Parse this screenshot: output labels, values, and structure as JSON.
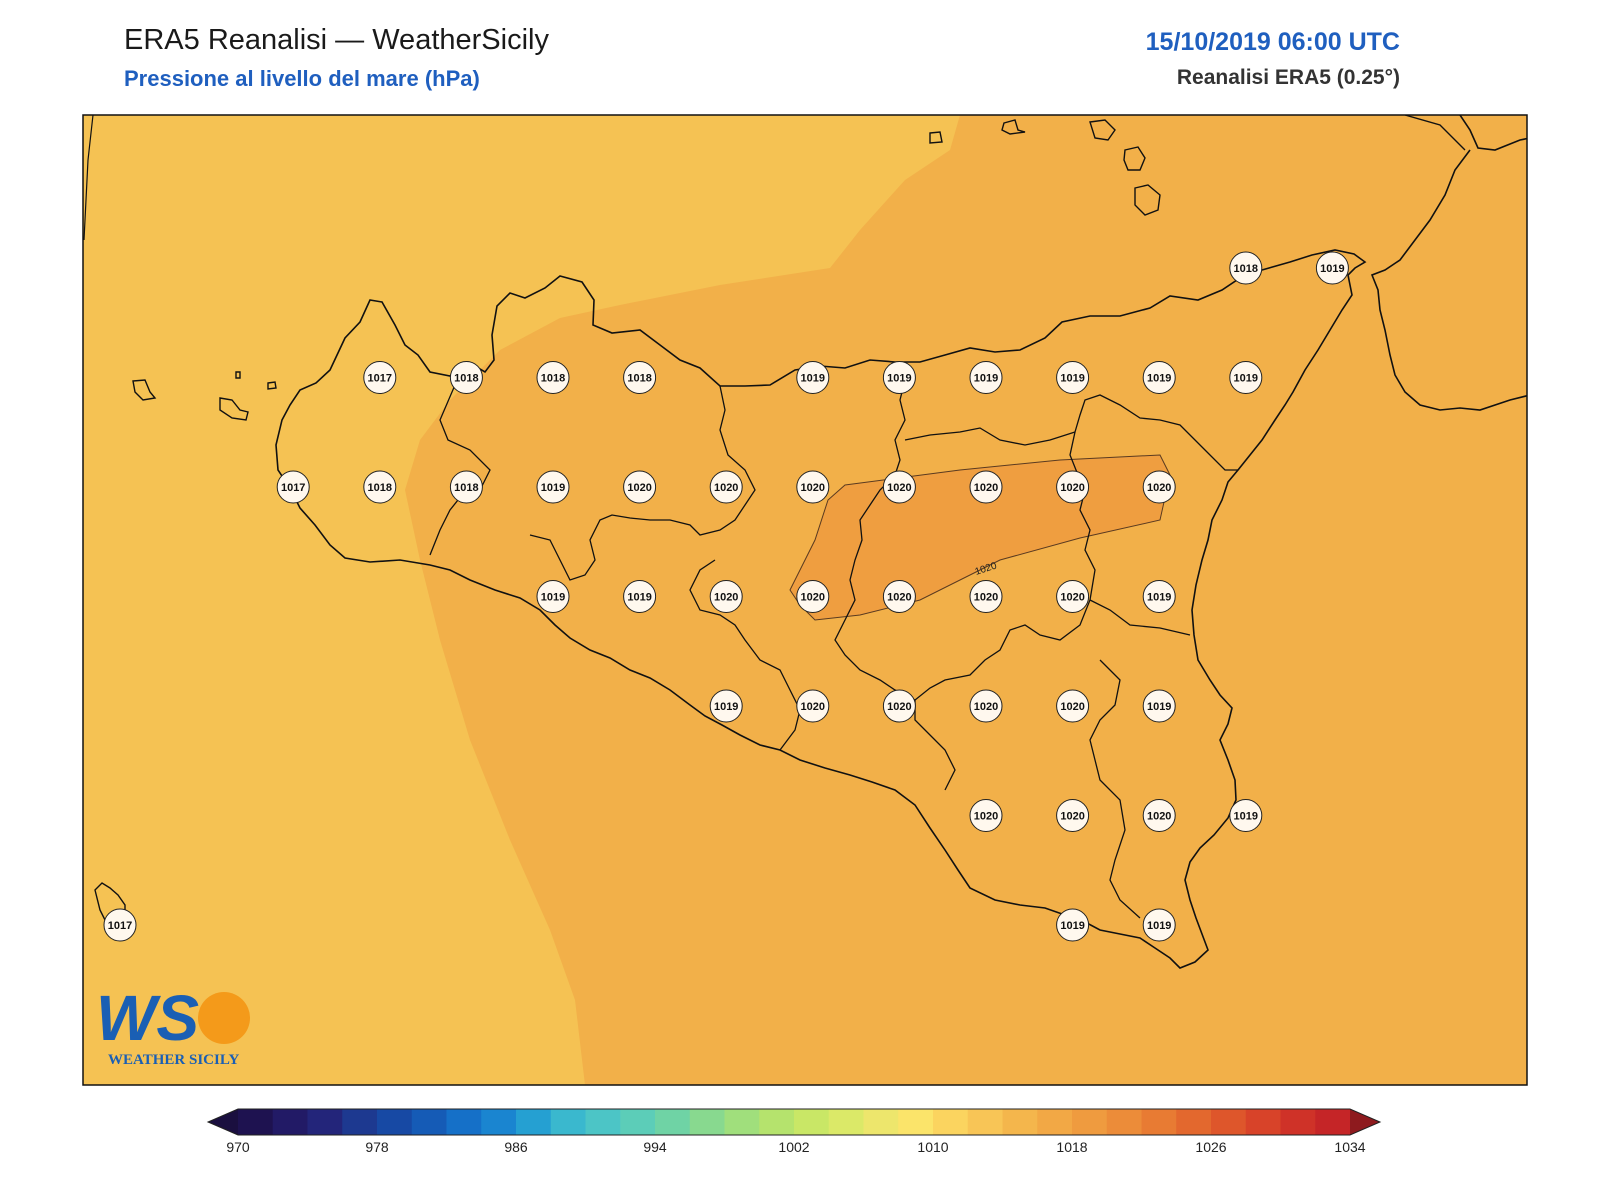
{
  "header": {
    "title": "ERA5 Reanalisi — WeatherSicily",
    "subtitle": "Pressione al livello del mare (hPa)",
    "datetime": "15/10/2019 06:00 UTC",
    "source": "Reanalisi ERA5 (0.25°)"
  },
  "map": {
    "contour_label": "1020",
    "fill_colors": {
      "band_1016_1018": "#f5c253",
      "band_1018_1020": "#f2b049",
      "band_1020_1022": "#ef9e40"
    }
  },
  "stations": [
    {
      "value": "1018",
      "col": 13,
      "row": 0
    },
    {
      "value": "1019",
      "col": 14,
      "row": 0
    },
    {
      "value": "1017",
      "col": 3,
      "row": 1
    },
    {
      "value": "1018",
      "col": 4,
      "row": 1
    },
    {
      "value": "1018",
      "col": 5,
      "row": 1
    },
    {
      "value": "1018",
      "col": 6,
      "row": 1
    },
    {
      "value": "1019",
      "col": 8,
      "row": 1
    },
    {
      "value": "1019",
      "col": 9,
      "row": 1
    },
    {
      "value": "1019",
      "col": 10,
      "row": 1
    },
    {
      "value": "1019",
      "col": 11,
      "row": 1
    },
    {
      "value": "1019",
      "col": 12,
      "row": 1
    },
    {
      "value": "1019",
      "col": 13,
      "row": 1
    },
    {
      "value": "1017",
      "col": 2,
      "row": 2
    },
    {
      "value": "1018",
      "col": 3,
      "row": 2
    },
    {
      "value": "1018",
      "col": 4,
      "row": 2
    },
    {
      "value": "1019",
      "col": 5,
      "row": 2
    },
    {
      "value": "1020",
      "col": 6,
      "row": 2
    },
    {
      "value": "1020",
      "col": 7,
      "row": 2
    },
    {
      "value": "1020",
      "col": 8,
      "row": 2
    },
    {
      "value": "1020",
      "col": 9,
      "row": 2
    },
    {
      "value": "1020",
      "col": 10,
      "row": 2
    },
    {
      "value": "1020",
      "col": 11,
      "row": 2
    },
    {
      "value": "1020",
      "col": 12,
      "row": 2
    },
    {
      "value": "1019",
      "col": 5,
      "row": 3
    },
    {
      "value": "1019",
      "col": 6,
      "row": 3
    },
    {
      "value": "1020",
      "col": 7,
      "row": 3
    },
    {
      "value": "1020",
      "col": 8,
      "row": 3
    },
    {
      "value": "1020",
      "col": 9,
      "row": 3
    },
    {
      "value": "1020",
      "col": 10,
      "row": 3
    },
    {
      "value": "1020",
      "col": 11,
      "row": 3
    },
    {
      "value": "1019",
      "col": 12,
      "row": 3
    },
    {
      "value": "1019",
      "col": 7,
      "row": 4
    },
    {
      "value": "1020",
      "col": 8,
      "row": 4
    },
    {
      "value": "1020",
      "col": 9,
      "row": 4
    },
    {
      "value": "1020",
      "col": 10,
      "row": 4
    },
    {
      "value": "1020",
      "col": 11,
      "row": 4
    },
    {
      "value": "1019",
      "col": 12,
      "row": 4
    },
    {
      "value": "1020",
      "col": 10,
      "row": 5
    },
    {
      "value": "1020",
      "col": 11,
      "row": 5
    },
    {
      "value": "1020",
      "col": 12,
      "row": 5
    },
    {
      "value": "1019",
      "col": 13,
      "row": 5
    },
    {
      "value": "1017",
      "col": 0,
      "row": 6
    },
    {
      "value": "1019",
      "col": 11,
      "row": 6
    },
    {
      "value": "1019",
      "col": 12,
      "row": 6
    }
  ],
  "colorbar": {
    "min": 970,
    "max": 1034,
    "step": 2,
    "tick_labels": [
      "970",
      "978",
      "986",
      "994",
      "1002",
      "1010",
      "1018",
      "1026",
      "1034"
    ],
    "colors": [
      "#1e1250",
      "#221a66",
      "#23257a",
      "#1d3990",
      "#1749a4",
      "#155bb6",
      "#1570c8",
      "#1a85d0",
      "#25a0d2",
      "#3ab8ce",
      "#4cc5c6",
      "#5ccdb8",
      "#6fd3a5",
      "#88d98f",
      "#a0df7c",
      "#b5e36d",
      "#c9e766",
      "#dbe968",
      "#ede66c",
      "#fbe46a",
      "#fbd45f",
      "#f8c556",
      "#f4b64c",
      "#f2a845",
      "#ef9b3f",
      "#ec8c39",
      "#e87b33",
      "#e3682e",
      "#de562b",
      "#d84329",
      "#cf3228",
      "#c52527"
    ],
    "extend_low_color": "#1a0f3f",
    "extend_high_color": "#8e1a1e"
  },
  "logo": {
    "letters": "WS",
    "text": "WEATHER SICILY"
  }
}
